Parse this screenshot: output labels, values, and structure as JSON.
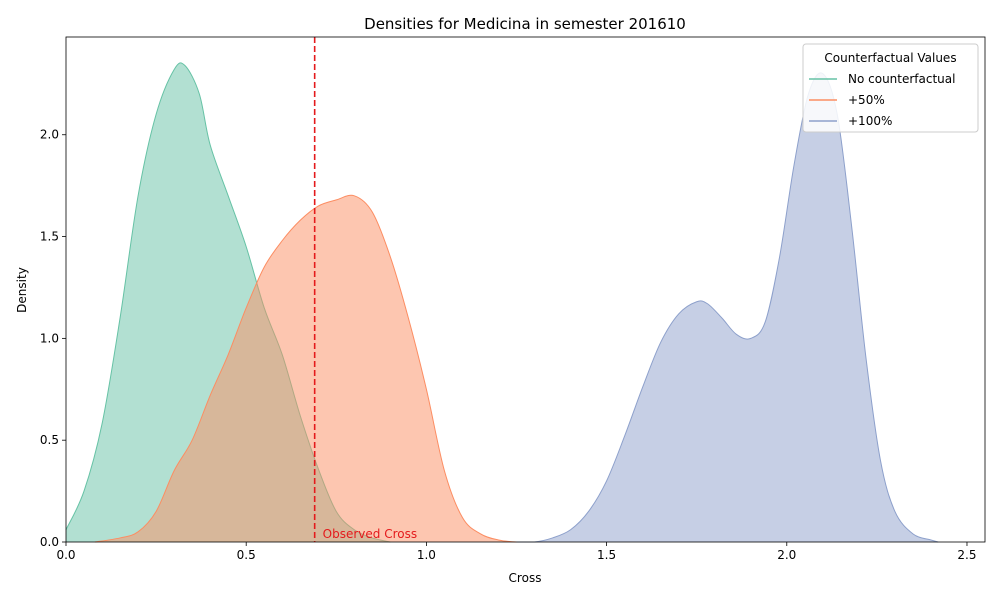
{
  "chart_data": {
    "type": "area",
    "title": "Densities for Medicina in semester 201610",
    "xlabel": "Cross",
    "ylabel": "Density",
    "xlim": [
      0.0,
      2.55
    ],
    "ylim": [
      0.0,
      2.48
    ],
    "x_ticks": [
      0.0,
      0.5,
      1.0,
      1.5,
      2.0,
      2.5
    ],
    "x_tick_labels": [
      "0.0",
      "0.5",
      "1.0",
      "1.5",
      "2.0",
      "2.5"
    ],
    "y_ticks": [
      0.0,
      0.5,
      1.0,
      1.5,
      2.0
    ],
    "y_tick_labels": [
      "0.0",
      "0.5",
      "1.0",
      "1.5",
      "2.0"
    ],
    "grid": false,
    "legend": {
      "title": "Counterfactual Values",
      "placement": "top-right"
    },
    "series": [
      {
        "name": "No counterfactual",
        "color": "#66c2a5",
        "x": [
          0.0,
          0.05,
          0.1,
          0.15,
          0.2,
          0.25,
          0.3,
          0.33,
          0.37,
          0.4,
          0.45,
          0.5,
          0.55,
          0.6,
          0.65,
          0.7,
          0.75,
          0.8,
          0.85,
          0.9
        ],
        "y": [
          0.06,
          0.25,
          0.58,
          1.1,
          1.7,
          2.1,
          2.32,
          2.34,
          2.2,
          1.95,
          1.7,
          1.45,
          1.15,
          0.92,
          0.62,
          0.36,
          0.15,
          0.06,
          0.02,
          0.0
        ]
      },
      {
        "name": "+50%",
        "color": "#fc8d62",
        "x": [
          0.08,
          0.15,
          0.2,
          0.25,
          0.3,
          0.35,
          0.4,
          0.45,
          0.5,
          0.55,
          0.6,
          0.65,
          0.7,
          0.75,
          0.8,
          0.85,
          0.9,
          0.95,
          1.0,
          1.05,
          1.1,
          1.15,
          1.2,
          1.25,
          1.3
        ],
        "y": [
          0.0,
          0.02,
          0.05,
          0.15,
          0.35,
          0.5,
          0.72,
          0.92,
          1.15,
          1.35,
          1.48,
          1.58,
          1.65,
          1.68,
          1.7,
          1.62,
          1.4,
          1.1,
          0.75,
          0.35,
          0.12,
          0.04,
          0.01,
          0.0,
          0.0
        ]
      },
      {
        "name": "+100%",
        "color": "#8da0cb",
        "x": [
          1.25,
          1.3,
          1.35,
          1.4,
          1.45,
          1.5,
          1.55,
          1.6,
          1.65,
          1.7,
          1.75,
          1.78,
          1.82,
          1.86,
          1.9,
          1.94,
          1.98,
          2.02,
          2.06,
          2.1,
          2.14,
          2.18,
          2.22,
          2.26,
          2.3,
          2.35,
          2.4,
          2.42
        ],
        "y": [
          0.0,
          0.0,
          0.02,
          0.06,
          0.15,
          0.3,
          0.52,
          0.76,
          0.98,
          1.12,
          1.18,
          1.17,
          1.1,
          1.02,
          1.0,
          1.08,
          1.4,
          1.85,
          2.2,
          2.3,
          2.1,
          1.55,
          0.9,
          0.4,
          0.15,
          0.04,
          0.01,
          0.0
        ]
      }
    ],
    "reference_line": {
      "x": 0.69,
      "color": "#e41a1c",
      "label": "Observed Cross"
    }
  }
}
